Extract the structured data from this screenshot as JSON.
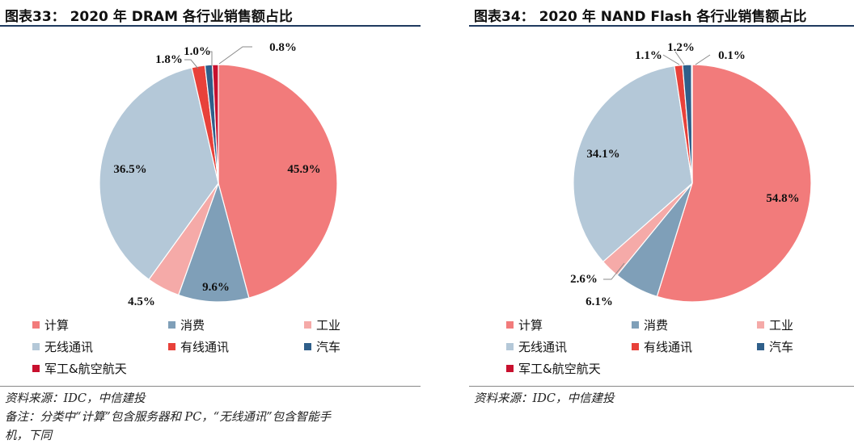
{
  "colors": {
    "compute": "#f27b7b",
    "consumer": "#7f9fb8",
    "industrial": "#f5aaa8",
    "wireless": "#b4c8d8",
    "wired": "#e8413a",
    "auto": "#2f5f8a",
    "military": "#c8102e"
  },
  "left": {
    "title": "图表33：   2020 年 DRAM 各行业销售额占比",
    "source": "资料来源：IDC，中信建投",
    "note_line1": "备注：分类中“计算”包含服务器和 PC，“无线通讯”包含智能手",
    "note_line2": "机，下同"
  },
  "right": {
    "title": "图表34：   2020 年 NAND Flash 各行业销售额占比",
    "source": "资料来源：IDC，中信建投"
  },
  "chart_data": [
    {
      "type": "pie",
      "title": "2020 年 DRAM 各行业销售额占比",
      "categories": [
        "计算",
        "消费",
        "工业",
        "无线通讯",
        "有线通讯",
        "汽车",
        "军工&航空航天"
      ],
      "values": [
        45.9,
        9.6,
        4.5,
        36.5,
        1.8,
        1.0,
        0.8
      ],
      "labels": [
        "45.9%",
        "9.6%",
        "4.5%",
        "36.5%",
        "1.8%",
        "1.0%",
        "0.8%"
      ],
      "legend": "bottom"
    },
    {
      "type": "pie",
      "title": "2020 年 NAND Flash 各行业销售额占比",
      "categories": [
        "计算",
        "消费",
        "工业",
        "无线通讯",
        "有线通讯",
        "汽车",
        "军工&航空航天"
      ],
      "values": [
        54.8,
        6.1,
        2.6,
        34.1,
        1.1,
        1.2,
        0.1
      ],
      "labels": [
        "54.8%",
        "6.1%",
        "2.6%",
        "34.1%",
        "1.1%",
        "1.2%",
        "0.1%"
      ],
      "legend": "bottom"
    }
  ]
}
